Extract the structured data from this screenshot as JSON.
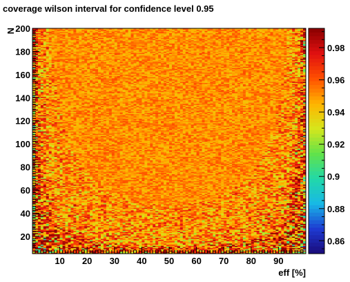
{
  "chart_data": {
    "type": "heatmap",
    "title": "coverage wilson interval for confidence level 0.95",
    "xlabel": "eff [%]",
    "ylabel": "N",
    "xlim": [
      0,
      100
    ],
    "ylim": [
      5,
      200
    ],
    "x_ticks": [
      10,
      20,
      30,
      40,
      50,
      60,
      70,
      80,
      90
    ],
    "y_ticks": [
      20,
      40,
      60,
      80,
      100,
      120,
      140,
      160,
      180,
      200
    ],
    "x_cell_width": 1,
    "y_cell_height": 1,
    "z_range": [
      0.852,
      0.992
    ],
    "colorbar_ticks": [
      0.86,
      0.88,
      0.9,
      0.92,
      0.94,
      0.96,
      0.98
    ],
    "colormap": "rainbow",
    "colormap_stops": [
      "#1a0a78",
      "#1e3ad2",
      "#18b8e6",
      "#22d8a8",
      "#62e24a",
      "#d6e61c",
      "#ffb400",
      "#ff5000",
      "#e01010",
      "#8a0000"
    ],
    "cells_description_note": ""
  },
  "colors": {
    "background": "#ffffff",
    "axis": "#000000",
    "typical_cell": "#f7a42a"
  }
}
